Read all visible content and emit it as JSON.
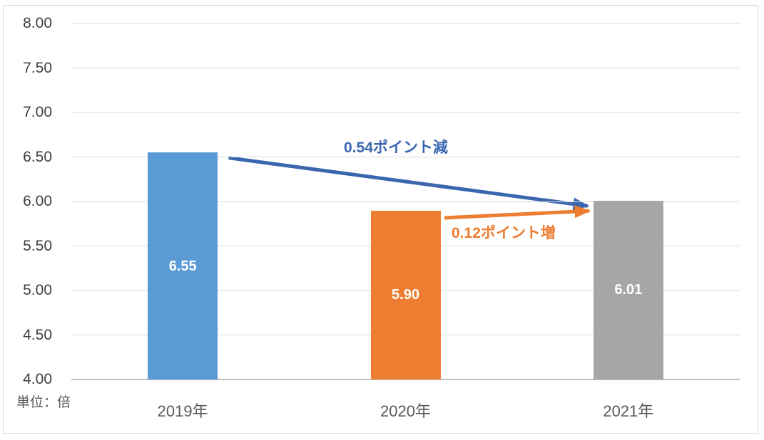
{
  "chart_data": {
    "type": "bar",
    "title": "",
    "unit_label": "単位：倍",
    "categories": [
      "2019年",
      "2020年",
      "2021年"
    ],
    "values": [
      6.55,
      5.9,
      6.01
    ],
    "value_labels": [
      "6.55",
      "5.90",
      "6.01"
    ],
    "bar_colors": [
      "#5B9BD5",
      "#ED7D31",
      "#A6A6A6"
    ],
    "ylim": [
      4.0,
      8.0
    ],
    "ytick_step": 0.5,
    "ytick_labels": [
      "8.00",
      "7.50",
      "7.00",
      "6.50",
      "6.00",
      "5.50",
      "5.00",
      "4.50",
      "4.00"
    ],
    "grid": true,
    "legend": "none",
    "colors": {
      "grid": "#D9D9D9",
      "axis_line": "#BFBFBF",
      "frame_border": "#D9D9D9",
      "ytick_text": "#404040",
      "xtick_text": "#595959",
      "bar_value_text": "#FFFFFF"
    },
    "annotations": [
      {
        "text": "0.54ポイント減",
        "color": "#3A66AE",
        "from_category": "2019年",
        "to_category": "2021年",
        "direction": "decrease"
      },
      {
        "text": "0.12ポイント増",
        "color": "#ED7D31",
        "from_category": "2020年",
        "to_category": "2021年",
        "direction": "increase"
      }
    ]
  }
}
